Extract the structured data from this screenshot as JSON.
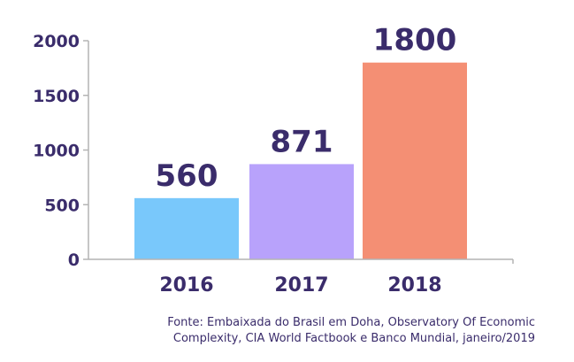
{
  "chart_data": {
    "type": "bar",
    "categories": [
      "2016",
      "2017",
      "2018"
    ],
    "values": [
      560,
      871,
      1800
    ],
    "data_labels": [
      "560",
      "871",
      "1800"
    ],
    "ylim": [
      0,
      2000
    ],
    "yticks": [
      0,
      500,
      1000,
      1500,
      2000
    ],
    "ytick_labels": [
      "0",
      "500",
      "1000",
      "1500",
      "2000"
    ],
    "grid": false,
    "colors": [
      "#79c8fb",
      "#b8a2fb",
      "#f48f74"
    ],
    "axis_color": "#b4b4b4",
    "text_color": "#3a2c6b",
    "title": "",
    "xlabel": "",
    "ylabel": ""
  },
  "source": {
    "line1": "Fonte: Embaixada do Brasil em Doha, Observatory Of Economic",
    "line2": "Complexity, CIA World Factbook e Banco Mundial, janeiro/2019"
  }
}
